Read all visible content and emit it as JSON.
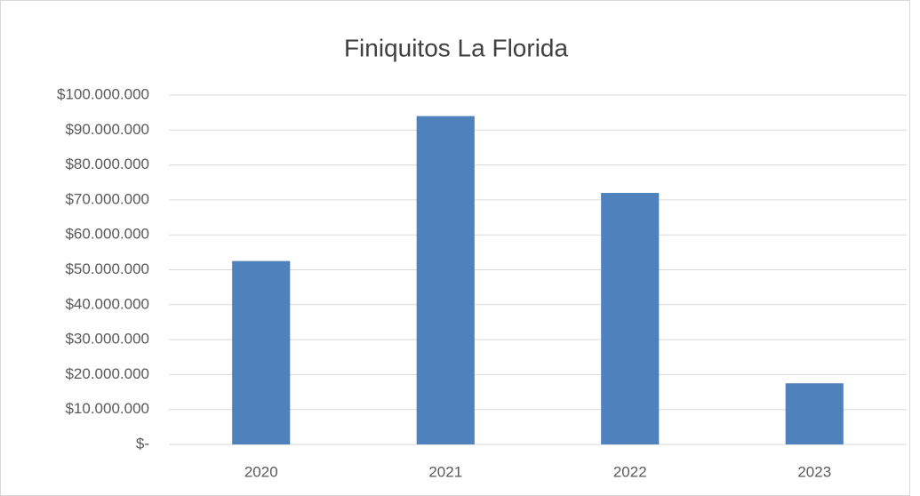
{
  "chart_data": {
    "type": "bar",
    "title": "Finiquitos La Florida",
    "categories": [
      "2020",
      "2021",
      "2022",
      "2023"
    ],
    "values": [
      52500000,
      94000000,
      72000000,
      17500000
    ],
    "color": "#4f81bd",
    "ylim": [
      0,
      100000000
    ],
    "yticks": [
      {
        "value": 0,
        "label": "$-"
      },
      {
        "value": 10000000,
        "label": "$10.000.000"
      },
      {
        "value": 20000000,
        "label": "$20.000.000"
      },
      {
        "value": 30000000,
        "label": "$30.000.000"
      },
      {
        "value": 40000000,
        "label": "$40.000.000"
      },
      {
        "value": 50000000,
        "label": "$50.000.000"
      },
      {
        "value": 60000000,
        "label": "$60.000.000"
      },
      {
        "value": 70000000,
        "label": "$70.000.000"
      },
      {
        "value": 80000000,
        "label": "$80.000.000"
      },
      {
        "value": 90000000,
        "label": "$90.000.000"
      },
      {
        "value": 100000000,
        "label": "$100.000.000"
      }
    ],
    "grid": true
  }
}
